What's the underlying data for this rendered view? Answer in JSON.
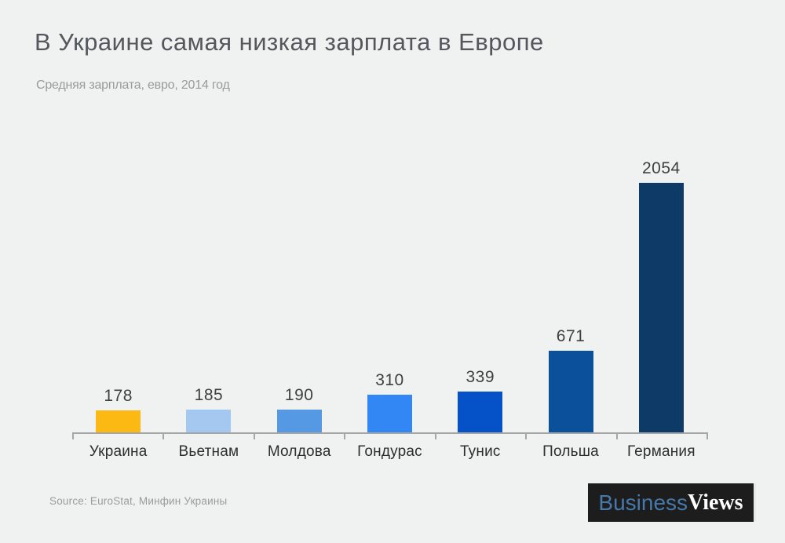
{
  "page": {
    "background_color": "#F0F1F1"
  },
  "header": {
    "title": "В Украине самая низкая зарплата в Европе",
    "subtitle": "Средняя зарплата,  евро, 2014 год"
  },
  "chart_data": {
    "type": "bar",
    "title": "В Украине самая низкая зарплата в Европе",
    "subtitle": "Средняя зарплата, евро, 2014 год",
    "categories": [
      "Украина",
      "Вьетнам",
      "Молдова",
      "Гондурас",
      "Тунис",
      "Польша",
      "Германия"
    ],
    "values": [
      178,
      185,
      190,
      310,
      339,
      671,
      2054
    ],
    "bar_colors": [
      "#FCB813",
      "#A4C8F0",
      "#5598E3",
      "#3287F4",
      "#0551C7",
      "#0A509A",
      "#0D3A66"
    ],
    "value_label_color": "#404040",
    "category_label_color": "#2E2E2E",
    "axis_color": "#A6A6A6",
    "ylim": [
      0,
      2200
    ],
    "grid": false,
    "legend": false,
    "data_labels": true
  },
  "footer": {
    "source": "Source: EuroStat, Минфин  Украины",
    "logo": {
      "part1": "Business",
      "part2": "Views",
      "background": "#1D1D1D",
      "part1_color": "#4679A9",
      "part2_color": "#FFFFFF"
    }
  }
}
